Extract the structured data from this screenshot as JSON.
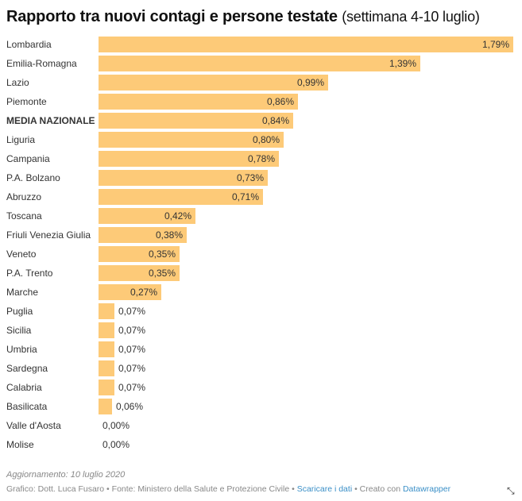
{
  "title": {
    "main": "Rapporto tra nuovi contagi e persone testate",
    "sub": "(settimana 4-10 luglio)"
  },
  "colors": {
    "bar": "#fdca78",
    "text": "#333333",
    "link": "#3a8fc7"
  },
  "chart_data": {
    "type": "bar",
    "orientation": "horizontal",
    "title": "Rapporto tra nuovi contagi e persone testate (settimana 4-10 luglio)",
    "xlabel": "",
    "ylabel": "",
    "unit": "%",
    "xlim": [
      0,
      1.79
    ],
    "grid": false,
    "categories": [
      "Lombardia",
      "Emilia-Romagna",
      "Lazio",
      "Piemonte",
      "MEDIA NAZIONALE",
      "Liguria",
      "Campania",
      "P.A. Bolzano",
      "Abruzzo",
      "Toscana",
      "Friuli Venezia Giulia",
      "Veneto",
      "P.A. Trento",
      "Marche",
      "Puglia",
      "Sicilia",
      "Umbria",
      "Sardegna",
      "Calabria",
      "Basilicata",
      "Valle d'Aosta",
      "Molise"
    ],
    "values": [
      1.79,
      1.39,
      0.99,
      0.86,
      0.84,
      0.8,
      0.78,
      0.73,
      0.71,
      0.42,
      0.38,
      0.35,
      0.35,
      0.27,
      0.07,
      0.07,
      0.07,
      0.07,
      0.07,
      0.06,
      0.0,
      0.0
    ],
    "labels": [
      "1,79%",
      "1,39%",
      "0,99%",
      "0,86%",
      "0,84%",
      "0,80%",
      "0,78%",
      "0,73%",
      "0,71%",
      "0,42%",
      "0,38%",
      "0,35%",
      "0,35%",
      "0,27%",
      "0,07%",
      "0,07%",
      "0,07%",
      "0,07%",
      "0,07%",
      "0,06%",
      "0,00%",
      "0,00%"
    ],
    "highlight": [
      "MEDIA NAZIONALE"
    ]
  },
  "footer": {
    "updated": "Aggiornamento: 10 luglio 2020",
    "credit": "Grafico: Dott. Luca Fusaro",
    "source": "Fonte: Ministero della Salute e Protezione Civile",
    "download_link": "Scaricare i dati",
    "created_with": "Creato con",
    "datawrapper_link": "Datawrapper",
    "separator": " • "
  },
  "icons": {
    "resize": "resize-icon"
  }
}
